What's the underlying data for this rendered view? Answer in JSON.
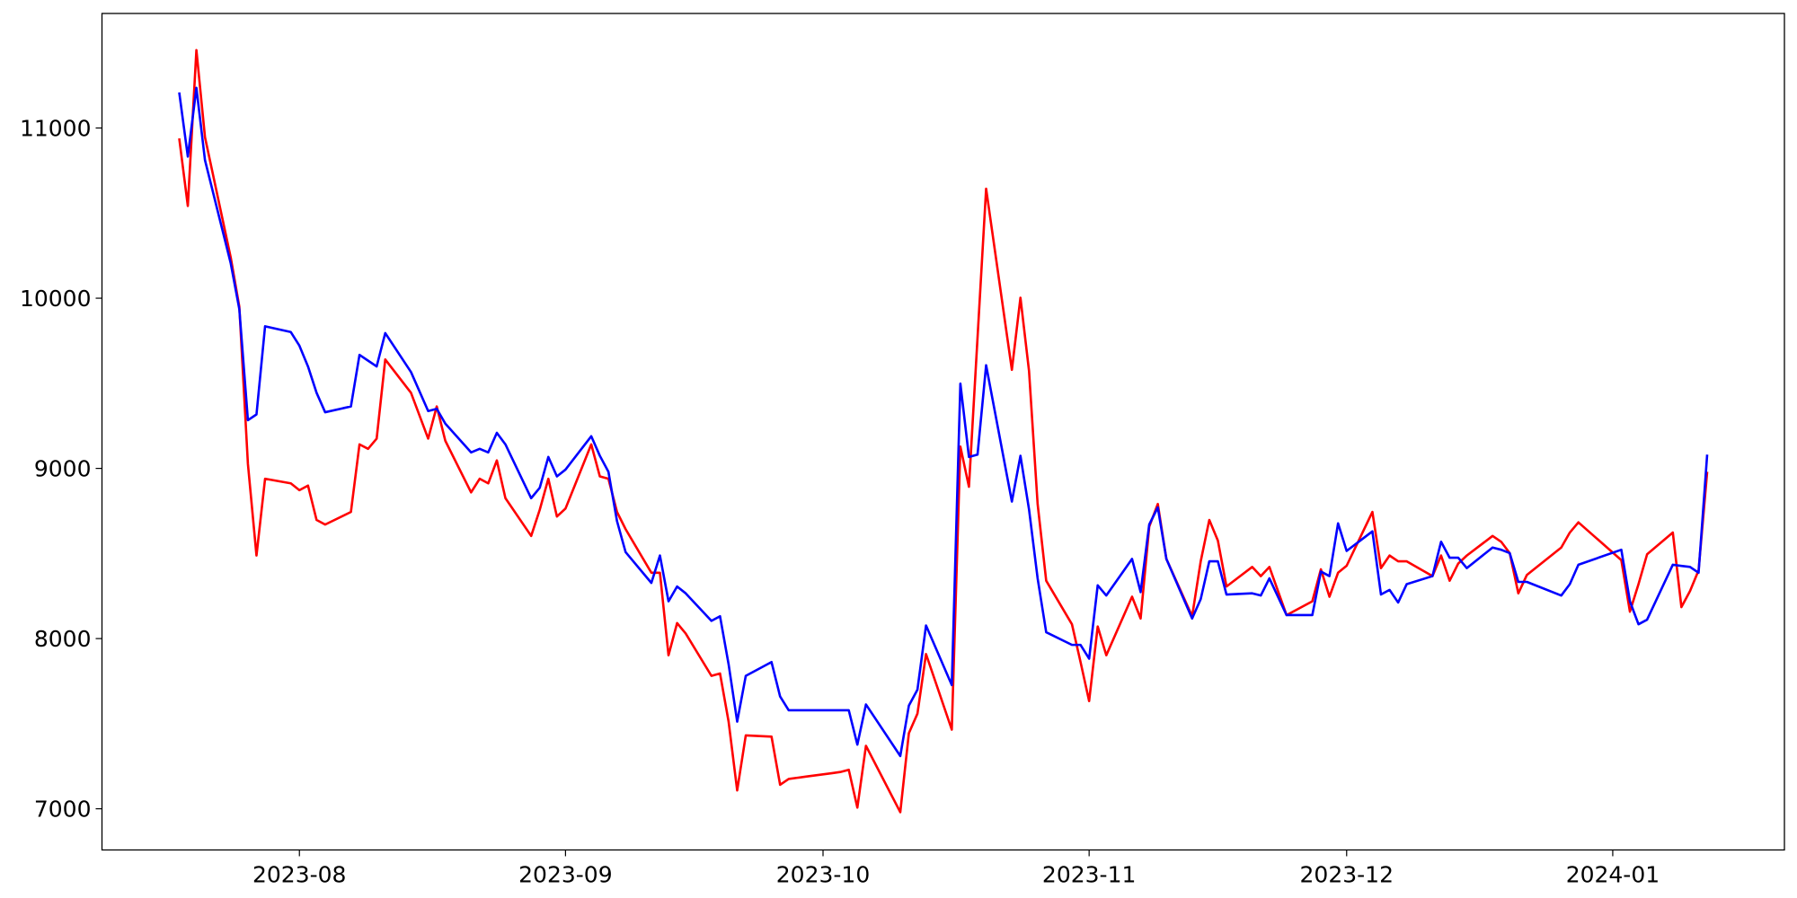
{
  "chart_data": {
    "type": "line",
    "x": [
      "2023-07-18",
      "2023-07-19",
      "2023-07-20",
      "2023-07-21",
      "2023-07-24",
      "2023-07-25",
      "2023-07-26",
      "2023-07-27",
      "2023-07-28",
      "2023-07-31",
      "2023-08-01",
      "2023-08-02",
      "2023-08-03",
      "2023-08-04",
      "2023-08-07",
      "2023-08-08",
      "2023-08-09",
      "2023-08-10",
      "2023-08-11",
      "2023-08-14",
      "2023-08-16",
      "2023-08-17",
      "2023-08-18",
      "2023-08-21",
      "2023-08-22",
      "2023-08-23",
      "2023-08-24",
      "2023-08-25",
      "2023-08-28",
      "2023-08-29",
      "2023-08-30",
      "2023-08-31",
      "2023-09-01",
      "2023-09-04",
      "2023-09-05",
      "2023-09-06",
      "2023-09-07",
      "2023-09-08",
      "2023-09-11",
      "2023-09-12",
      "2023-09-13",
      "2023-09-14",
      "2023-09-15",
      "2023-09-18",
      "2023-09-19",
      "2023-09-20",
      "2023-09-21",
      "2023-09-22",
      "2023-09-25",
      "2023-09-26",
      "2023-09-27",
      "2023-09-28",
      "2023-09-29",
      "2023-10-02",
      "2023-10-03",
      "2023-10-04",
      "2023-10-05",
      "2023-10-06",
      "2023-10-10",
      "2023-10-11",
      "2023-10-12",
      "2023-10-13",
      "2023-10-16",
      "2023-10-17",
      "2023-10-18",
      "2023-10-19",
      "2023-10-20",
      "2023-10-23",
      "2023-10-24",
      "2023-10-25",
      "2023-10-26",
      "2023-10-27",
      "2023-10-30",
      "2023-10-31",
      "2023-11-01",
      "2023-11-02",
      "2023-11-03",
      "2023-11-06",
      "2023-11-07",
      "2023-11-08",
      "2023-11-09",
      "2023-11-10",
      "2023-11-13",
      "2023-11-14",
      "2023-11-15",
      "2023-11-16",
      "2023-11-17",
      "2023-11-20",
      "2023-11-21",
      "2023-11-22",
      "2023-11-24",
      "2023-11-27",
      "2023-11-28",
      "2023-11-29",
      "2023-11-30",
      "2023-12-01",
      "2023-12-04",
      "2023-12-05",
      "2023-12-06",
      "2023-12-07",
      "2023-12-08",
      "2023-12-11",
      "2023-12-12",
      "2023-12-13",
      "2023-12-14",
      "2023-12-15",
      "2023-12-18",
      "2023-12-19",
      "2023-12-20",
      "2023-12-21",
      "2023-12-22",
      "2023-12-26",
      "2023-12-27",
      "2023-12-28",
      "2024-01-02",
      "2024-01-03",
      "2024-01-04",
      "2024-01-05",
      "2024-01-08",
      "2024-01-09",
      "2024-01-10",
      "2024-01-11",
      "2024-01-12"
    ],
    "series": [
      {
        "color": "#ff0000",
        "values": [
          10939,
          10542,
          11458,
          10946,
          10239,
          9950,
          9027,
          8488,
          8939,
          8912,
          8872,
          8899,
          8697,
          8670,
          8744,
          9141,
          9115,
          9175,
          9640,
          9444,
          9175,
          9364,
          9162,
          8859,
          8939,
          8912,
          9047,
          8825,
          8603,
          8757,
          8939,
          8717,
          8764,
          9141,
          8953,
          8939,
          8744,
          8643,
          8387,
          8387,
          7902,
          8091,
          8030,
          7781,
          7795,
          7512,
          7108,
          7431,
          7424,
          7141,
          7175,
          7182,
          7189,
          7209,
          7216,
          7229,
          7007,
          7370,
          6980,
          7444,
          7559,
          7909,
          7465,
          9128,
          8892,
          9768,
          10643,
          9579,
          10003,
          9572,
          8791,
          8340,
          8084,
          7862,
          7633,
          8071,
          7902,
          8246,
          8118,
          8657,
          8791,
          8468,
          8131,
          8454,
          8697,
          8576,
          8306,
          8421,
          8367,
          8421,
          8138,
          8219,
          8407,
          8246,
          8387,
          8428,
          8744,
          8414,
          8488,
          8454,
          8454,
          8367,
          8488,
          8340,
          8441,
          8488,
          8603,
          8569,
          8502,
          8266,
          8374,
          8535,
          8623,
          8683,
          8461,
          8158,
          8320,
          8495,
          8623,
          8185,
          8279,
          8401,
          8980
        ]
      },
      {
        "color": "#0000ff",
        "values": [
          11209,
          10832,
          11236,
          10811,
          10205,
          9936,
          9283,
          9317,
          9835,
          9801,
          9721,
          9599,
          9444,
          9330,
          9364,
          9667,
          9633,
          9599,
          9795,
          9566,
          9337,
          9350,
          9263,
          9094,
          9115,
          9094,
          9209,
          9141,
          8825,
          8886,
          9067,
          8953,
          8993,
          9189,
          9074,
          8980,
          8690,
          8508,
          8327,
          8488,
          8219,
          8306,
          8266,
          8104,
          8131,
          7849,
          7512,
          7781,
          7862,
          7660,
          7579,
          7579,
          7579,
          7579,
          7579,
          7579,
          7377,
          7613,
          7310,
          7606,
          7700,
          8077,
          7727,
          9498,
          9067,
          9081,
          9606,
          8805,
          9074,
          8758,
          8354,
          8037,
          7963,
          7963,
          7882,
          8313,
          8253,
          8468,
          8273,
          8670,
          8771,
          8468,
          8118,
          8232,
          8454,
          8454,
          8259,
          8266,
          8253,
          8354,
          8138,
          8138,
          8394,
          8367,
          8677,
          8515,
          8630,
          8259,
          8286,
          8212,
          8320,
          8367,
          8569,
          8475,
          8475,
          8414,
          8535,
          8522,
          8502,
          8333,
          8333,
          8253,
          8320,
          8434,
          8522,
          8219,
          8084,
          8111,
          8434,
          8427,
          8421,
          8387,
          9081
        ]
      }
    ],
    "xlim": [
      "2023-07-09",
      "2024-01-21"
    ],
    "xticks": [
      {
        "value": "2023-08-01",
        "label": "2023-08"
      },
      {
        "value": "2023-09-01",
        "label": "2023-09"
      },
      {
        "value": "2023-10-01",
        "label": "2023-10"
      },
      {
        "value": "2023-11-01",
        "label": "2023-11"
      },
      {
        "value": "2023-12-01",
        "label": "2023-12"
      },
      {
        "value": "2024-01-01",
        "label": "2024-01"
      }
    ],
    "ylim": [
      6758,
      11673
    ],
    "yticks": [
      7000,
      8000,
      9000,
      10000,
      11000
    ],
    "grid": false
  }
}
